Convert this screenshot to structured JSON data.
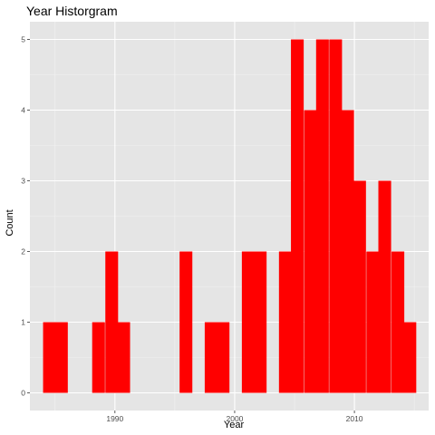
{
  "chart_data": {
    "type": "bar",
    "title": "Year Historgram",
    "xlabel": "Year",
    "ylabel": "Count",
    "bin_width": 1.0345,
    "bins": [
      {
        "x": 1984.0,
        "count": 1
      },
      {
        "x": 1985.0,
        "count": 1
      },
      {
        "x": 1988.1,
        "count": 1
      },
      {
        "x": 1989.2,
        "count": 2
      },
      {
        "x": 1990.2,
        "count": 1
      },
      {
        "x": 1995.4,
        "count": 2
      },
      {
        "x": 1997.5,
        "count": 1
      },
      {
        "x": 1998.5,
        "count": 1
      },
      {
        "x": 2000.6,
        "count": 2
      },
      {
        "x": 2001.6,
        "count": 2
      },
      {
        "x": 2003.7,
        "count": 2
      },
      {
        "x": 2004.7,
        "count": 5
      },
      {
        "x": 2005.8,
        "count": 4
      },
      {
        "x": 2006.8,
        "count": 5
      },
      {
        "x": 2007.9,
        "count": 5
      },
      {
        "x": 2008.9,
        "count": 4
      },
      {
        "x": 2009.9,
        "count": 3
      },
      {
        "x": 2011.0,
        "count": 2
      },
      {
        "x": 2012.0,
        "count": 3
      },
      {
        "x": 2013.1,
        "count": 2
      },
      {
        "x": 2014.1,
        "count": 1
      }
    ],
    "x_ticks": [
      {
        "value": 1990,
        "label": "1990"
      },
      {
        "value": 2000,
        "label": "2000"
      },
      {
        "value": 2010,
        "label": "2010"
      }
    ],
    "y_ticks": [
      {
        "value": 0,
        "label": "0"
      },
      {
        "value": 1,
        "label": "1"
      },
      {
        "value": 2,
        "label": "2"
      },
      {
        "value": 3,
        "label": "3"
      },
      {
        "value": 4,
        "label": "4"
      },
      {
        "value": 5,
        "label": "5"
      }
    ],
    "xlim": [
      1982.9,
      2016.2
    ],
    "ylim": [
      -0.25,
      5.25
    ],
    "grid": true,
    "colors": {
      "bar": "#ff0000",
      "panel": "#e5e5e5",
      "grid_major": "#ffffff",
      "grid_minor": "#f2f2f2",
      "tick": "#333333"
    }
  }
}
